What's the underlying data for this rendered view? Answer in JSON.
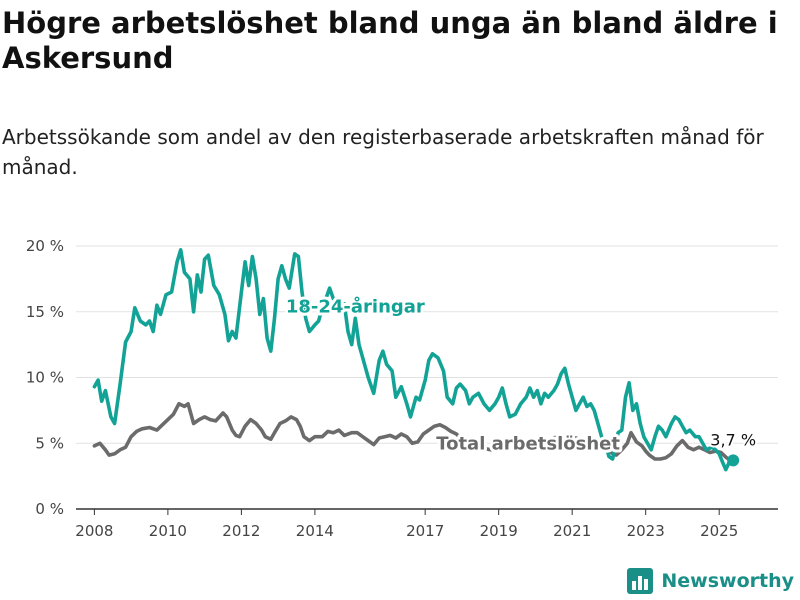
{
  "title": "Högre arbetslöshet bland unga än bland äldre i Askersund",
  "subtitle": "Arbetssökande som andel av den registerbaserade arbetskraften månad för månad.",
  "brand": {
    "name": "Newsworthy",
    "icon": "bar-chart-logo-icon"
  },
  "colors": {
    "youth": "#13a396",
    "total": "#6b6b6b",
    "grid": "#e2e2e2",
    "axis": "#333333",
    "brand": "#1a8f87"
  },
  "chart_data": {
    "type": "line",
    "ylim": [
      0,
      20
    ],
    "xlim": [
      2007.5,
      2026.6
    ],
    "y_ticks": [
      {
        "value": 0,
        "label": "0 %"
      },
      {
        "value": 5,
        "label": "5 %"
      },
      {
        "value": 10,
        "label": "10 %"
      },
      {
        "value": 15,
        "label": "15 %"
      },
      {
        "value": 20,
        "label": "20 %"
      }
    ],
    "x_ticks": [
      {
        "value": 2008,
        "label": "2008"
      },
      {
        "value": 2010,
        "label": "2010"
      },
      {
        "value": 2012,
        "label": "2012"
      },
      {
        "value": 2014,
        "label": "2014"
      },
      {
        "value": 2017,
        "label": "2017"
      },
      {
        "value": 2019,
        "label": "2019"
      },
      {
        "value": 2021,
        "label": "2021"
      },
      {
        "value": 2023,
        "label": "2023"
      },
      {
        "value": 2025,
        "label": "2025"
      }
    ],
    "grid": true,
    "series": [
      {
        "name": "18-24-åringar",
        "color": "#13a396",
        "points": [
          [
            2008.0,
            9.3
          ],
          [
            2008.1,
            9.8
          ],
          [
            2008.2,
            8.2
          ],
          [
            2008.3,
            9.0
          ],
          [
            2008.45,
            7.0
          ],
          [
            2008.55,
            6.5
          ],
          [
            2008.7,
            9.5
          ],
          [
            2008.85,
            12.7
          ],
          [
            2009.0,
            13.5
          ],
          [
            2009.1,
            15.3
          ],
          [
            2009.25,
            14.3
          ],
          [
            2009.4,
            14.0
          ],
          [
            2009.5,
            14.3
          ],
          [
            2009.6,
            13.5
          ],
          [
            2009.7,
            15.5
          ],
          [
            2009.8,
            14.8
          ],
          [
            2009.95,
            16.3
          ],
          [
            2010.1,
            16.5
          ],
          [
            2010.25,
            18.8
          ],
          [
            2010.35,
            19.7
          ],
          [
            2010.45,
            18.0
          ],
          [
            2010.6,
            17.5
          ],
          [
            2010.7,
            15.0
          ],
          [
            2010.8,
            17.8
          ],
          [
            2010.9,
            16.5
          ],
          [
            2011.0,
            19.0
          ],
          [
            2011.1,
            19.3
          ],
          [
            2011.25,
            17.0
          ],
          [
            2011.4,
            16.3
          ],
          [
            2011.55,
            14.8
          ],
          [
            2011.65,
            12.8
          ],
          [
            2011.75,
            13.5
          ],
          [
            2011.85,
            13.0
          ],
          [
            2012.0,
            16.5
          ],
          [
            2012.1,
            18.8
          ],
          [
            2012.2,
            17.0
          ],
          [
            2012.3,
            19.2
          ],
          [
            2012.4,
            17.5
          ],
          [
            2012.5,
            14.8
          ],
          [
            2012.6,
            16.0
          ],
          [
            2012.7,
            13.0
          ],
          [
            2012.8,
            12.0
          ],
          [
            2012.9,
            14.5
          ],
          [
            2013.0,
            17.5
          ],
          [
            2013.1,
            18.5
          ],
          [
            2013.2,
            17.5
          ],
          [
            2013.3,
            16.8
          ],
          [
            2013.45,
            19.4
          ],
          [
            2013.55,
            19.2
          ],
          [
            2013.65,
            16.5
          ],
          [
            2013.75,
            14.5
          ],
          [
            2013.85,
            13.5
          ],
          [
            2014.0,
            14.0
          ],
          [
            2014.1,
            14.3
          ],
          [
            2014.2,
            15.3
          ],
          [
            2014.3,
            16.0
          ],
          [
            2014.4,
            16.8
          ],
          [
            2014.5,
            16.0
          ],
          [
            2014.6,
            15.8
          ],
          [
            2014.7,
            15.5
          ],
          [
            2014.8,
            15.6
          ],
          [
            2014.9,
            13.5
          ],
          [
            2015.0,
            12.5
          ],
          [
            2015.1,
            14.5
          ],
          [
            2015.2,
            12.5
          ],
          [
            2015.3,
            11.5
          ],
          [
            2015.45,
            10.0
          ],
          [
            2015.6,
            8.8
          ],
          [
            2015.75,
            11.3
          ],
          [
            2015.85,
            12.0
          ],
          [
            2015.95,
            11.0
          ],
          [
            2016.1,
            10.5
          ],
          [
            2016.2,
            8.5
          ],
          [
            2016.35,
            9.3
          ],
          [
            2016.5,
            8.0
          ],
          [
            2016.6,
            7.0
          ],
          [
            2016.75,
            8.5
          ],
          [
            2016.85,
            8.3
          ],
          [
            2017.0,
            9.8
          ],
          [
            2017.1,
            11.3
          ],
          [
            2017.2,
            11.8
          ],
          [
            2017.35,
            11.5
          ],
          [
            2017.5,
            10.5
          ],
          [
            2017.6,
            8.5
          ],
          [
            2017.75,
            8.0
          ],
          [
            2017.85,
            9.2
          ],
          [
            2017.95,
            9.5
          ],
          [
            2018.1,
            9.0
          ],
          [
            2018.2,
            8.0
          ],
          [
            2018.3,
            8.5
          ],
          [
            2018.45,
            8.8
          ],
          [
            2018.6,
            8.0
          ],
          [
            2018.75,
            7.5
          ],
          [
            2018.9,
            8.0
          ],
          [
            2019.0,
            8.5
          ],
          [
            2019.1,
            9.2
          ],
          [
            2019.2,
            8.0
          ],
          [
            2019.3,
            7.0
          ],
          [
            2019.45,
            7.2
          ],
          [
            2019.6,
            8.0
          ],
          [
            2019.75,
            8.5
          ],
          [
            2019.85,
            9.2
          ],
          [
            2019.95,
            8.5
          ],
          [
            2020.05,
            9.0
          ],
          [
            2020.15,
            8.0
          ],
          [
            2020.25,
            8.8
          ],
          [
            2020.35,
            8.5
          ],
          [
            2020.5,
            9.0
          ],
          [
            2020.6,
            9.5
          ],
          [
            2020.7,
            10.3
          ],
          [
            2020.8,
            10.7
          ],
          [
            2020.9,
            9.5
          ],
          [
            2021.0,
            8.5
          ],
          [
            2021.1,
            7.5
          ],
          [
            2021.2,
            8.0
          ],
          [
            2021.3,
            8.5
          ],
          [
            2021.4,
            7.8
          ],
          [
            2021.5,
            8.0
          ],
          [
            2021.6,
            7.5
          ],
          [
            2021.7,
            6.5
          ],
          [
            2021.8,
            5.5
          ],
          [
            2021.9,
            5.0
          ],
          [
            2022.0,
            4.0
          ],
          [
            2022.1,
            3.8
          ],
          [
            2022.25,
            5.8
          ],
          [
            2022.35,
            6.0
          ],
          [
            2022.45,
            8.5
          ],
          [
            2022.55,
            9.6
          ],
          [
            2022.65,
            7.5
          ],
          [
            2022.75,
            8.0
          ],
          [
            2022.85,
            6.5
          ],
          [
            2022.95,
            5.5
          ],
          [
            2023.05,
            5.0
          ],
          [
            2023.15,
            4.5
          ],
          [
            2023.25,
            5.5
          ],
          [
            2023.35,
            6.3
          ],
          [
            2023.45,
            6.0
          ],
          [
            2023.55,
            5.5
          ],
          [
            2023.7,
            6.5
          ],
          [
            2023.8,
            7.0
          ],
          [
            2023.9,
            6.8
          ],
          [
            2024.0,
            6.3
          ],
          [
            2024.1,
            5.8
          ],
          [
            2024.2,
            6.0
          ],
          [
            2024.35,
            5.5
          ],
          [
            2024.45,
            5.5
          ],
          [
            2024.55,
            5.0
          ],
          [
            2024.65,
            4.5
          ],
          [
            2024.8,
            4.7
          ],
          [
            2024.9,
            4.5
          ],
          [
            2025.0,
            4.2
          ],
          [
            2025.1,
            3.5
          ],
          [
            2025.18,
            3.0
          ],
          [
            2025.28,
            3.6
          ],
          [
            2025.38,
            3.7
          ]
        ]
      },
      {
        "name": "Total arbetslöshet",
        "color": "#6b6b6b",
        "points": [
          [
            2008.0,
            4.8
          ],
          [
            2008.15,
            5.0
          ],
          [
            2008.3,
            4.5
          ],
          [
            2008.4,
            4.1
          ],
          [
            2008.55,
            4.2
          ],
          [
            2008.7,
            4.5
          ],
          [
            2008.85,
            4.7
          ],
          [
            2009.0,
            5.5
          ],
          [
            2009.15,
            5.9
          ],
          [
            2009.3,
            6.1
          ],
          [
            2009.5,
            6.2
          ],
          [
            2009.7,
            6.0
          ],
          [
            2009.85,
            6.4
          ],
          [
            2010.0,
            6.8
          ],
          [
            2010.15,
            7.2
          ],
          [
            2010.3,
            8.0
          ],
          [
            2010.45,
            7.8
          ],
          [
            2010.55,
            8.0
          ],
          [
            2010.7,
            6.5
          ],
          [
            2010.85,
            6.8
          ],
          [
            2011.0,
            7.0
          ],
          [
            2011.15,
            6.8
          ],
          [
            2011.3,
            6.7
          ],
          [
            2011.5,
            7.3
          ],
          [
            2011.6,
            7.0
          ],
          [
            2011.75,
            6.0
          ],
          [
            2011.85,
            5.6
          ],
          [
            2011.95,
            5.5
          ],
          [
            2012.1,
            6.3
          ],
          [
            2012.25,
            6.8
          ],
          [
            2012.4,
            6.5
          ],
          [
            2012.55,
            6.0
          ],
          [
            2012.65,
            5.5
          ],
          [
            2012.8,
            5.3
          ],
          [
            2012.9,
            5.8
          ],
          [
            2013.05,
            6.5
          ],
          [
            2013.2,
            6.7
          ],
          [
            2013.35,
            7.0
          ],
          [
            2013.5,
            6.8
          ],
          [
            2013.6,
            6.3
          ],
          [
            2013.7,
            5.5
          ],
          [
            2013.85,
            5.2
          ],
          [
            2014.0,
            5.5
          ],
          [
            2014.2,
            5.5
          ],
          [
            2014.35,
            5.9
          ],
          [
            2014.5,
            5.8
          ],
          [
            2014.65,
            6.0
          ],
          [
            2014.8,
            5.6
          ],
          [
            2015.0,
            5.8
          ],
          [
            2015.15,
            5.8
          ],
          [
            2015.3,
            5.5
          ],
          [
            2015.45,
            5.2
          ],
          [
            2015.6,
            4.9
          ],
          [
            2015.75,
            5.4
          ],
          [
            2015.9,
            5.5
          ],
          [
            2016.05,
            5.6
          ],
          [
            2016.2,
            5.4
          ],
          [
            2016.35,
            5.7
          ],
          [
            2016.5,
            5.5
          ],
          [
            2016.65,
            5.0
          ],
          [
            2016.8,
            5.1
          ],
          [
            2016.95,
            5.7
          ],
          [
            2017.1,
            6.0
          ],
          [
            2017.25,
            6.3
          ],
          [
            2017.4,
            6.4
          ],
          [
            2017.55,
            6.2
          ],
          [
            2017.7,
            5.9
          ],
          [
            2017.85,
            5.7
          ],
          [
            2018.0,
            5.3
          ],
          [
            2018.2,
            5.0
          ],
          [
            2018.4,
            4.8
          ],
          [
            2018.6,
            4.6
          ],
          [
            2018.8,
            4.5
          ],
          [
            2019.0,
            4.7
          ],
          [
            2019.2,
            4.8
          ],
          [
            2019.4,
            4.8
          ],
          [
            2019.6,
            4.8
          ],
          [
            2019.8,
            4.9
          ],
          [
            2020.0,
            5.0
          ],
          [
            2020.2,
            5.3
          ],
          [
            2020.4,
            5.3
          ],
          [
            2020.6,
            5.5
          ],
          [
            2020.8,
            5.6
          ],
          [
            2021.0,
            5.5
          ],
          [
            2021.2,
            5.3
          ],
          [
            2021.4,
            5.2
          ],
          [
            2021.6,
            5.0
          ],
          [
            2021.8,
            4.9
          ],
          [
            2021.95,
            4.6
          ],
          [
            2022.05,
            4.3
          ],
          [
            2022.2,
            4.1
          ],
          [
            2022.35,
            4.5
          ],
          [
            2022.5,
            5.0
          ],
          [
            2022.6,
            5.8
          ],
          [
            2022.75,
            5.1
          ],
          [
            2022.9,
            4.8
          ],
          [
            2023.0,
            4.4
          ],
          [
            2023.1,
            4.1
          ],
          [
            2023.25,
            3.8
          ],
          [
            2023.4,
            3.8
          ],
          [
            2023.55,
            3.9
          ],
          [
            2023.7,
            4.2
          ],
          [
            2023.85,
            4.8
          ],
          [
            2024.0,
            5.2
          ],
          [
            2024.15,
            4.7
          ],
          [
            2024.3,
            4.5
          ],
          [
            2024.45,
            4.7
          ],
          [
            2024.6,
            4.5
          ],
          [
            2024.75,
            4.3
          ],
          [
            2024.9,
            4.4
          ],
          [
            2025.05,
            4.3
          ],
          [
            2025.2,
            3.9
          ],
          [
            2025.3,
            3.7
          ]
        ]
      }
    ],
    "annotations": [
      {
        "text": "18-24-åringar",
        "series": "18-24-åringar",
        "x": 2015.1,
        "y": 15.4
      },
      {
        "text": "Total arbetslöshet",
        "series": "Total arbetslöshet",
        "x": 2019.8,
        "y": 5.0
      }
    ],
    "end_label": {
      "text": "3,7 %",
      "x": 2025.38,
      "y": 3.7
    }
  }
}
